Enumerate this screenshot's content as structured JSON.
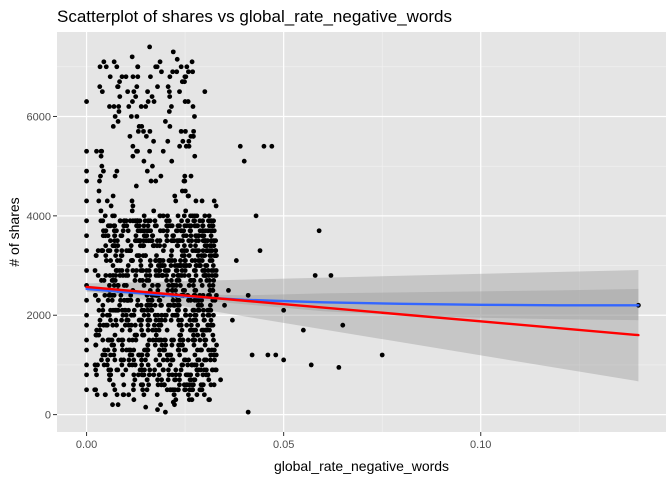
{
  "chart_data": {
    "type": "scatter",
    "title": "Scatterplot of shares vs global_rate_negative_words",
    "xlabel": "global_rate_negative_words",
    "ylabel": "# of shares",
    "xlim": [
      -0.0075,
      0.147
    ],
    "ylim": [
      -350,
      7700
    ],
    "x_ticks": [
      0.0,
      0.05,
      0.1
    ],
    "x_tick_labels": [
      "0.00",
      "0.05",
      "0.10"
    ],
    "y_ticks": [
      0,
      2000,
      4000,
      6000
    ],
    "y_tick_labels": [
      "0",
      "2000",
      "4000",
      "6000"
    ],
    "grid": true,
    "background": "#e5e5e5",
    "point_color": "#000000",
    "points": [
      [
        0.0,
        6300
      ],
      [
        0.0,
        5300
      ],
      [
        0.0,
        4900
      ],
      [
        0.0,
        4700
      ],
      [
        0.0,
        4300
      ],
      [
        0.0,
        3900
      ],
      [
        0.0,
        3600
      ],
      [
        0.0,
        3300
      ],
      [
        0.0,
        2900
      ],
      [
        0.0,
        2600
      ],
      [
        0.0,
        2300
      ],
      [
        0.0,
        2000
      ],
      [
        0.0,
        1800
      ],
      [
        0.0,
        1500
      ],
      [
        0.0,
        1300
      ],
      [
        0.0,
        1000
      ],
      [
        0.0,
        800
      ],
      [
        0.0,
        500
      ],
      [
        0.004,
        6500
      ],
      [
        0.005,
        7000
      ],
      [
        0.006,
        6800
      ],
      [
        0.007,
        7100
      ],
      [
        0.008,
        6600
      ],
      [
        0.01,
        6800
      ],
      [
        0.012,
        6500
      ],
      [
        0.013,
        7000
      ],
      [
        0.015,
        6200
      ],
      [
        0.016,
        7400
      ],
      [
        0.018,
        6600
      ],
      [
        0.019,
        6900
      ],
      [
        0.021,
        6100
      ],
      [
        0.022,
        7300
      ],
      [
        0.023,
        7150
      ],
      [
        0.024,
        7000
      ],
      [
        0.025,
        6300
      ],
      [
        0.03,
        6500
      ],
      [
        0.008,
        5900
      ],
      [
        0.011,
        5600
      ],
      [
        0.014,
        5800
      ],
      [
        0.017,
        5500
      ],
      [
        0.02,
        5900
      ],
      [
        0.024,
        5700
      ],
      [
        0.026,
        5400
      ],
      [
        0.018,
        100
      ],
      [
        0.02,
        50
      ],
      [
        0.008,
        200
      ],
      [
        0.012,
        300
      ],
      [
        0.015,
        150
      ],
      [
        0.022,
        250
      ],
      [
        0.028,
        400
      ],
      [
        0.034,
        700
      ],
      [
        0.035,
        2200
      ],
      [
        0.036,
        2500
      ],
      [
        0.037,
        1900
      ],
      [
        0.038,
        3100
      ],
      [
        0.039,
        5400
      ],
      [
        0.04,
        5100
      ],
      [
        0.041,
        2400
      ],
      [
        0.042,
        1200
      ],
      [
        0.043,
        4000
      ],
      [
        0.044,
        3300
      ],
      [
        0.045,
        5400
      ],
      [
        0.046,
        1200
      ],
      [
        0.047,
        5400
      ],
      [
        0.048,
        1200
      ],
      [
        0.05,
        1100
      ],
      [
        0.041,
        50
      ],
      [
        0.05,
        2100
      ],
      [
        0.055,
        1700
      ],
      [
        0.057,
        1000
      ],
      [
        0.058,
        2800
      ],
      [
        0.059,
        3700
      ],
      [
        0.062,
        2800
      ],
      [
        0.065,
        1800
      ],
      [
        0.064,
        950
      ],
      [
        0.075,
        1200
      ],
      [
        0.14,
        2200
      ]
    ],
    "series": [
      {
        "name": "lm",
        "color": "#ff0000",
        "x": [
          0.0,
          0.14
        ],
        "y": [
          2570,
          1600
        ],
        "ci_lower": [
          2500,
          670
        ],
        "ci_upper": [
          2640,
          2910
        ]
      },
      {
        "name": "smooth",
        "color": "#3366ff",
        "x": [
          0.0,
          0.02,
          0.04,
          0.06,
          0.08,
          0.1,
          0.12,
          0.14
        ],
        "y": [
          2530,
          2400,
          2310,
          2260,
          2230,
          2210,
          2200,
          2200
        ],
        "ci_lower": [
          2470,
          2360,
          2220,
          2080,
          2000,
          1950,
          1920,
          1900
        ],
        "ci_upper": [
          2600,
          2440,
          2400,
          2440,
          2460,
          2480,
          2500,
          2530
        ]
      }
    ]
  }
}
